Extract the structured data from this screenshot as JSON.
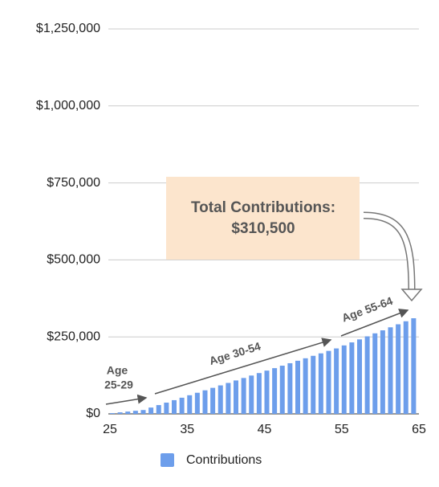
{
  "chart_data": {
    "type": "bar",
    "x": [
      25,
      26,
      27,
      28,
      29,
      30,
      31,
      32,
      33,
      34,
      35,
      36,
      37,
      38,
      39,
      40,
      41,
      42,
      43,
      44,
      45,
      46,
      47,
      48,
      49,
      50,
      51,
      52,
      53,
      54,
      55,
      56,
      57,
      58,
      59,
      60,
      61,
      62,
      63,
      64
    ],
    "series": [
      {
        "name": "Contributions",
        "color": "#6d9eeb",
        "values": [
          2500,
          5000,
          7500,
          10000,
          12500,
          20500,
          28500,
          36500,
          44500,
          52500,
          60500,
          68500,
          76500,
          84500,
          92500,
          100500,
          108500,
          116500,
          124500,
          132500,
          140500,
          148500,
          156500,
          164500,
          172500,
          180500,
          188500,
          196500,
          204500,
          212500,
          222300,
          232100,
          241900,
          251700,
          261500,
          271300,
          281100,
          290900,
          300700,
          310500
        ]
      }
    ],
    "xlim": [
      25,
      65
    ],
    "xticks": [
      25,
      35,
      45,
      55,
      65
    ],
    "ylim": [
      0,
      1250000
    ],
    "yticks": [
      {
        "value": 0,
        "label": "$0"
      },
      {
        "value": 250000,
        "label": "$250,000"
      },
      {
        "value": 500000,
        "label": "$500,000"
      },
      {
        "value": 750000,
        "label": "$750,000"
      },
      {
        "value": 1000000,
        "label": "$1,000,000"
      },
      {
        "value": 1250000,
        "label": "$1,250,000"
      }
    ],
    "grid": true,
    "callout": [
      "Total Contributions:",
      "$310,500"
    ],
    "annotations": [
      [
        "Age",
        "25-29"
      ],
      [
        "Age 30-54"
      ],
      [
        "Age 55-64"
      ]
    ]
  }
}
